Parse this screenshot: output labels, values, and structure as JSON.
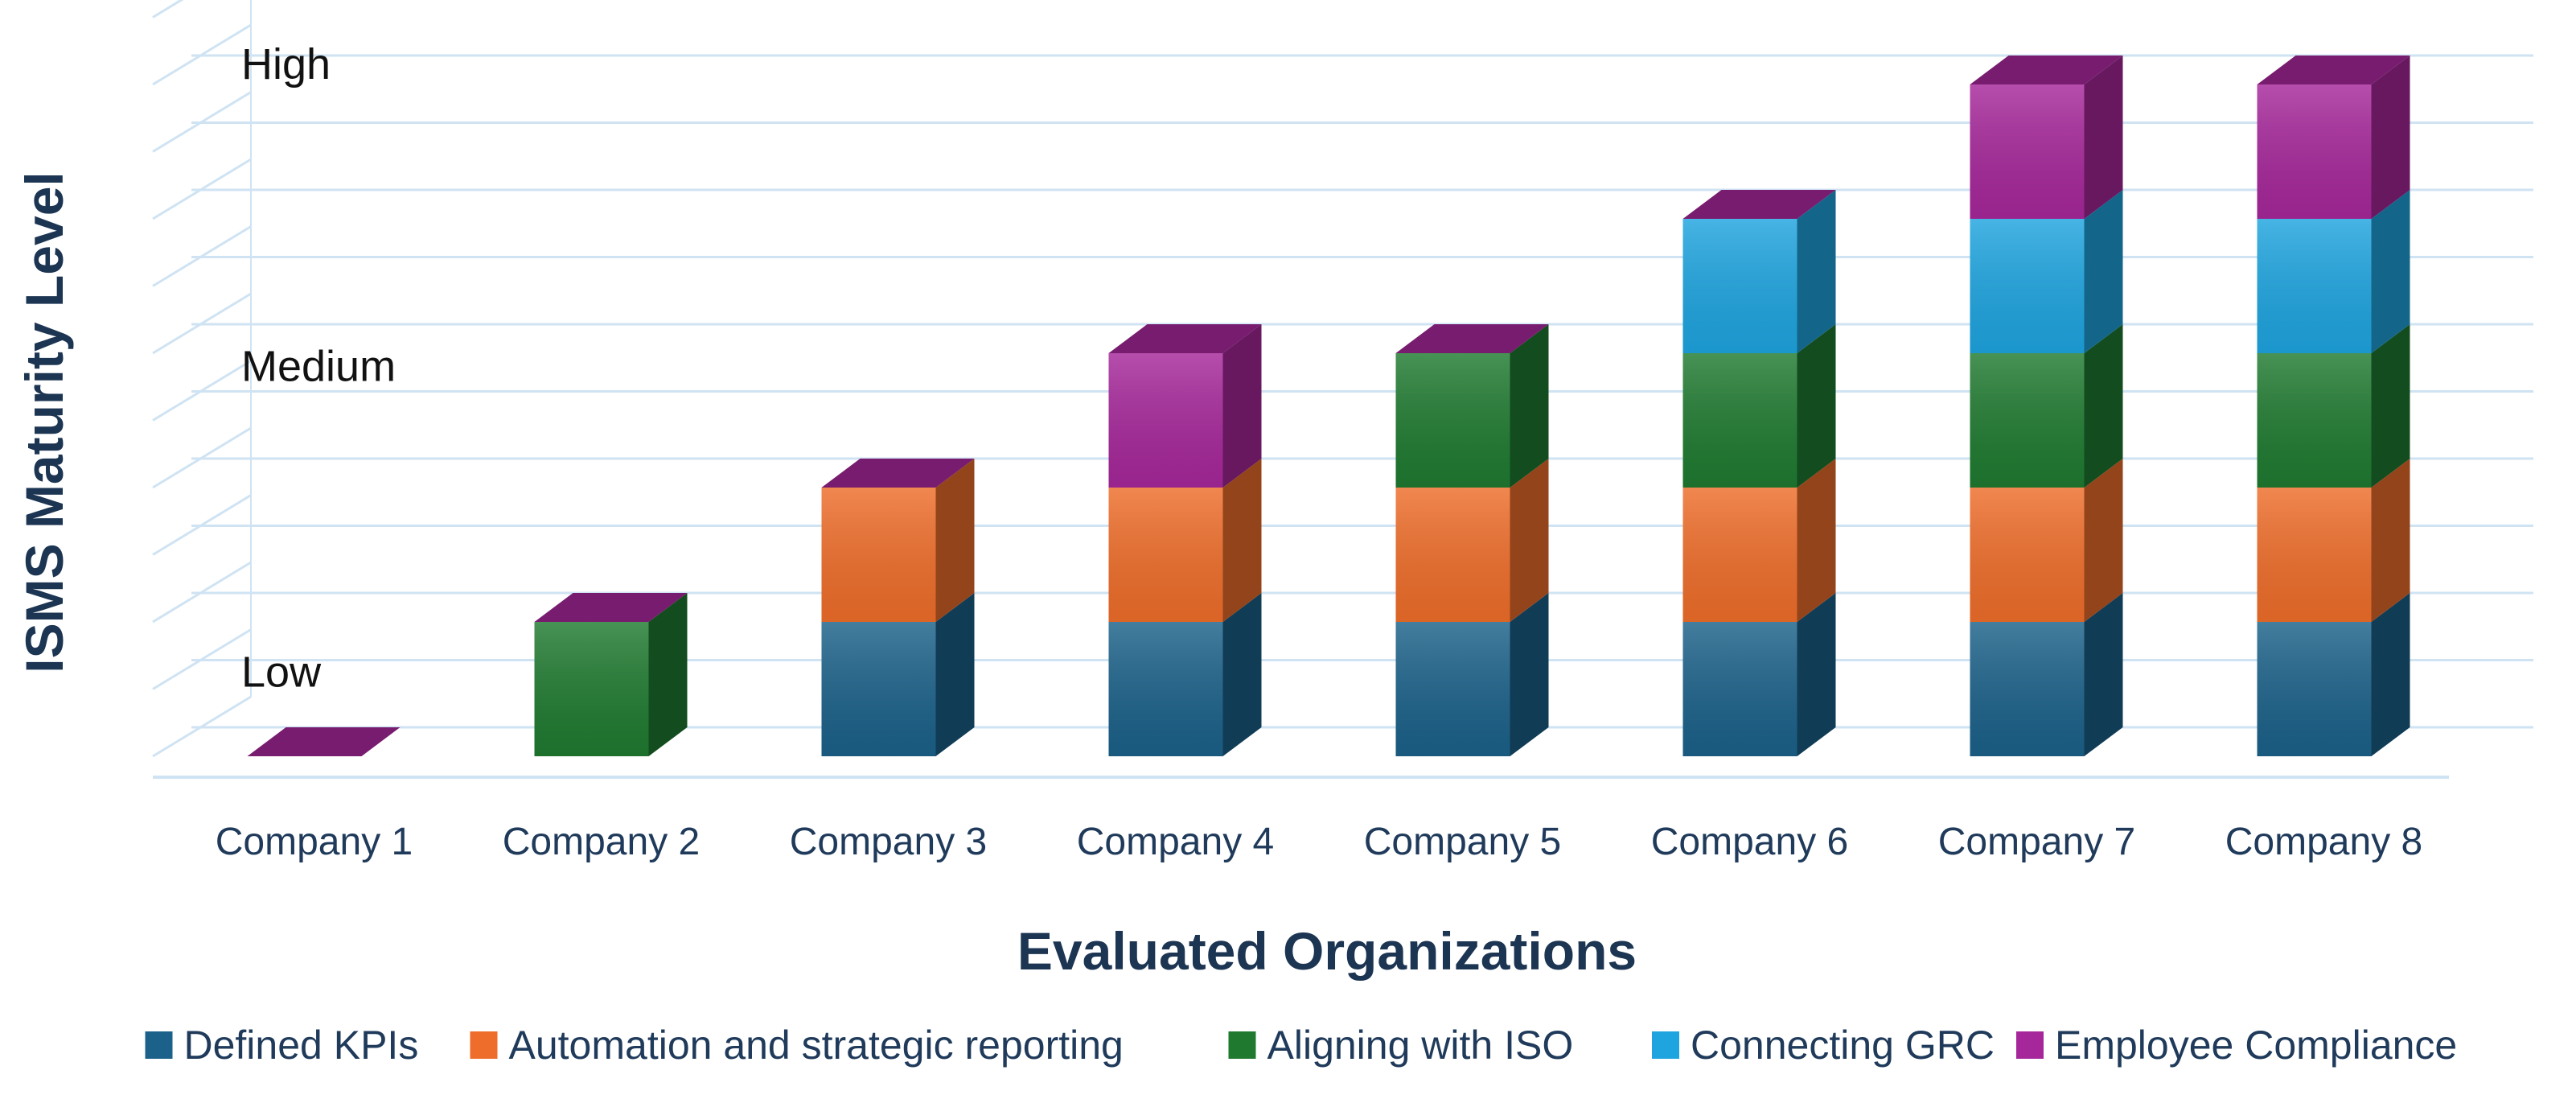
{
  "chart_data": {
    "type": "bar",
    "stacked": true,
    "three_d": true,
    "xlabel": "Evaluated Organizations",
    "ylabel": "ISMS Maturity Level",
    "categories": [
      "Company 1",
      "Company 2",
      "Company 3",
      "Company 4",
      "Company 5",
      "Company 6",
      "Company 7",
      "Company 8"
    ],
    "y_level_labels": [
      {
        "text": "Low",
        "value": 1.25
      },
      {
        "text": "Medium",
        "value": 5.8
      },
      {
        "text": "High",
        "value": 10.3
      }
    ],
    "ylim": [
      0,
      11
    ],
    "grid": true,
    "legend_position": "bottom",
    "series": [
      {
        "name": "Defined KPIs",
        "color": "#1b6189",
        "values": [
          0,
          0,
          2,
          2,
          2,
          2,
          2,
          2
        ]
      },
      {
        "name": "Automation and strategic reporting",
        "color": "#ee6d2a",
        "values": [
          0,
          0,
          2,
          2,
          2,
          2,
          2,
          2
        ]
      },
      {
        "name": "Aligning with ISO",
        "color": "#1f7a30",
        "values": [
          0,
          2,
          0,
          0,
          2,
          2,
          2,
          2
        ]
      },
      {
        "name": "Connecting GRC",
        "color": "#1ea4df",
        "values": [
          0,
          0,
          0,
          0,
          0,
          2,
          2,
          2
        ]
      },
      {
        "name": "Employee Compliance",
        "color": "#a6279a",
        "values": [
          0,
          0,
          0,
          2,
          0,
          0,
          2,
          2
        ]
      }
    ]
  }
}
